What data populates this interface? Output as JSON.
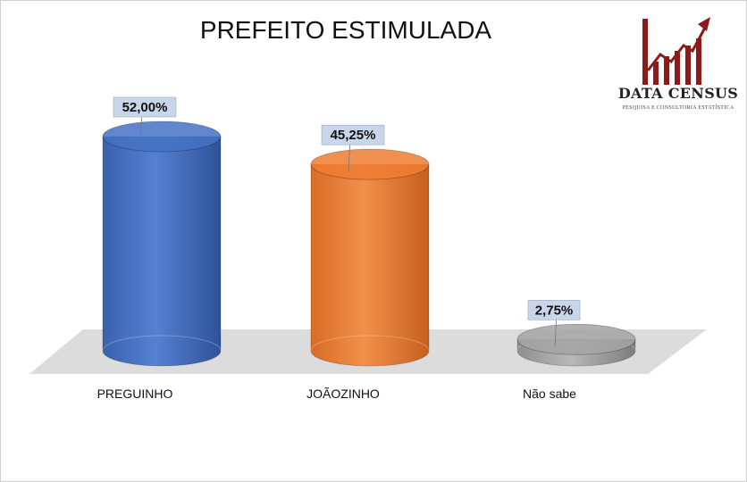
{
  "chart_data": {
    "type": "bar",
    "title": "PREFEITO ESTIMULADA",
    "categories": [
      "PREGUINHO",
      "JOÃOZINHO",
      "Não sabe"
    ],
    "values": [
      52.0,
      45.25,
      2.75
    ],
    "value_labels": [
      "52,00%",
      "45,25%",
      "2,75%"
    ],
    "colors": [
      "#4472c4",
      "#ed7d31",
      "#a5a5a5"
    ],
    "ylim": [
      0,
      52
    ],
    "grid": false,
    "legend": "none"
  },
  "brand": {
    "name": "DATA CENSUS",
    "tagline": "PESQUISA E CONSULTORIA ESTATÍSTICA",
    "color": "#8b1a1a"
  }
}
